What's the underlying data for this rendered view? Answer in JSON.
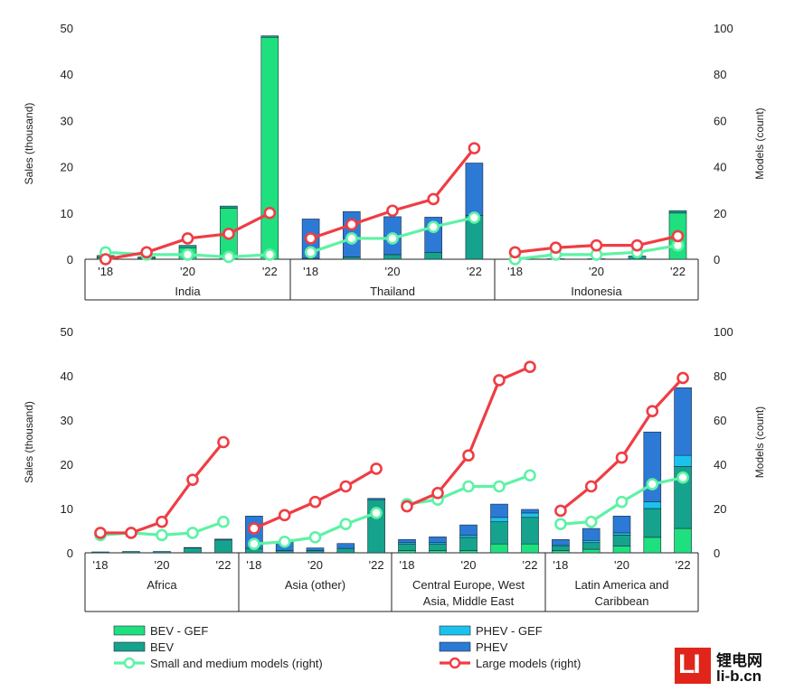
{
  "colors": {
    "bev_gef": "#1fe07f",
    "bev": "#15a38d",
    "phev_gef": "#1cc2ee",
    "phev": "#2c7ad6",
    "small": "#5ef2a6",
    "large": "#ef3d44",
    "axis": "#222222"
  },
  "legend": {
    "bev_gef": "BEV - GEF",
    "bev": "BEV",
    "phev_gef": "PHEV - GEF",
    "phev": "PHEV",
    "small": "Small and medium models (right)",
    "large": "Large models (right)"
  },
  "watermark": {
    "cn": "锂电网",
    "url": "li-b.cn",
    "logo": "LI"
  },
  "chart_data": [
    {
      "type": "bar",
      "title": "",
      "ylabel": "Sales (thousand)",
      "y2label": "Models (count)",
      "ylim": [
        0,
        50
      ],
      "y2lim": [
        0,
        100
      ],
      "yticks": [
        "0",
        "10",
        "20",
        "30",
        "40",
        "50"
      ],
      "y2ticks": [
        "0",
        "20",
        "40",
        "60",
        "80",
        "100"
      ],
      "xtick_labels": [
        "'18",
        "'20",
        "'22"
      ],
      "groups": [
        {
          "name": "India",
          "bev_gef": [
            0.3,
            0.2,
            2.5,
            11.0,
            48.0
          ],
          "bev": [
            0.5,
            0.3,
            0.5,
            0.5,
            0.3
          ],
          "phev_gef": [
            0,
            0,
            0,
            0,
            0
          ],
          "phev": [
            0,
            0,
            0,
            0,
            0
          ],
          "small": [
            3,
            2,
            2,
            1,
            2
          ],
          "large": [
            0,
            3,
            9,
            11,
            20
          ]
        },
        {
          "name": "Thailand",
          "bev_gef": [
            0,
            0,
            0,
            0,
            0
          ],
          "bev": [
            0.2,
            0.5,
            1.0,
            1.5,
            9.5
          ],
          "phev_gef": [
            0,
            0,
            0,
            0,
            0
          ],
          "phev": [
            8.5,
            9.8,
            8.2,
            7.6,
            11.3
          ],
          "small": [
            3,
            9,
            9,
            14,
            18
          ],
          "large": [
            9,
            15,
            21,
            26,
            48
          ]
        },
        {
          "name": "Indonesia",
          "bev_gef": [
            0,
            0,
            0,
            0,
            10.0
          ],
          "bev": [
            0,
            0.1,
            0.1,
            0.7,
            0.5
          ],
          "phev_gef": [
            0,
            0,
            0,
            0,
            0
          ],
          "phev": [
            0,
            0,
            0,
            0,
            0
          ],
          "small": [
            0,
            2,
            2,
            3,
            6
          ],
          "large": [
            3,
            5,
            6,
            6,
            10
          ]
        }
      ]
    },
    {
      "type": "bar",
      "title": "",
      "ylabel": "Sales (thousand)",
      "y2label": "Models (count)",
      "ylim": [
        0,
        50
      ],
      "y2lim": [
        0,
        100
      ],
      "yticks": [
        "0",
        "10",
        "20",
        "30",
        "40",
        "50"
      ],
      "y2ticks": [
        "0",
        "20",
        "40",
        "60",
        "80",
        "100"
      ],
      "xtick_labels": [
        "'18",
        "'20",
        "'22"
      ],
      "groups": [
        {
          "name": "Africa",
          "bev_gef": [
            0,
            0,
            0,
            0,
            0
          ],
          "bev": [
            0.2,
            0.3,
            0.3,
            1.1,
            2.9
          ],
          "phev_gef": [
            0,
            0,
            0,
            0,
            0
          ],
          "phev": [
            0,
            0,
            0,
            0.1,
            0.2
          ],
          "small": [
            8,
            9,
            8,
            9,
            14
          ],
          "large": [
            9,
            9,
            14,
            33,
            50
          ]
        },
        {
          "name": "Asia (other)",
          "bev_gef": [
            0,
            0,
            0,
            0,
            0
          ],
          "bev": [
            1.0,
            0.5,
            0.5,
            1.0,
            12.0
          ],
          "phev_gef": [
            0,
            0,
            0,
            0,
            0
          ],
          "phev": [
            7.3,
            2.0,
            0.6,
            1.1,
            0.3
          ],
          "small": [
            4,
            5,
            7,
            13,
            18
          ],
          "large": [
            11,
            17,
            23,
            30,
            38
          ]
        },
        {
          "name": "Central Europe, West Asia, Middle East",
          "bev_gef": [
            0.5,
            0.5,
            0.5,
            2.0,
            2.0
          ],
          "bev": [
            1.5,
            1.5,
            3.0,
            5.0,
            6.0
          ],
          "phev_gef": [
            0.3,
            0.3,
            0.5,
            1.0,
            1.0
          ],
          "phev": [
            0.7,
            1.3,
            2.3,
            3.0,
            0.8
          ],
          "small": [
            22,
            24,
            30,
            30,
            35
          ],
          "large": [
            21,
            27,
            44,
            78,
            84
          ]
        },
        {
          "name": "Latin America and Caribbean",
          "bev_gef": [
            0.5,
            0.8,
            1.5,
            3.5,
            5.5
          ],
          "bev": [
            1.0,
            1.5,
            2.5,
            6.5,
            14.0
          ],
          "phev_gef": [
            0.3,
            0.5,
            0.5,
            1.5,
            2.5
          ],
          "phev": [
            1.2,
            2.7,
            3.8,
            15.8,
            15.3
          ],
          "small": [
            13,
            14,
            23,
            31,
            34
          ],
          "large": [
            19,
            30,
            43,
            64,
            79
          ]
        }
      ]
    }
  ]
}
